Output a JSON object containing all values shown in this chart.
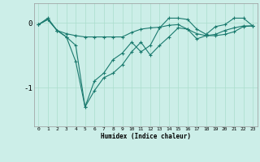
{
  "xlabel": "Humidex (Indice chaleur)",
  "bg_color": "#cceee8",
  "grid_color": "#aaddcc",
  "line_color": "#1a7a6e",
  "x_values": [
    0,
    1,
    2,
    3,
    4,
    5,
    6,
    7,
    8,
    9,
    10,
    11,
    12,
    13,
    14,
    15,
    16,
    17,
    18,
    19,
    20,
    21,
    22,
    23
  ],
  "series1": [
    -0.03,
    0.07,
    -0.12,
    -0.17,
    -0.2,
    -0.22,
    -0.22,
    -0.22,
    -0.22,
    -0.22,
    -0.15,
    -0.1,
    -0.08,
    -0.07,
    -0.04,
    -0.03,
    -0.1,
    -0.17,
    -0.2,
    -0.2,
    -0.18,
    -0.14,
    -0.06,
    -0.05
  ],
  "series2": [
    -0.03,
    0.05,
    -0.12,
    -0.22,
    -0.6,
    -1.3,
    -1.05,
    -0.85,
    -0.78,
    -0.65,
    -0.45,
    -0.3,
    -0.5,
    -0.35,
    -0.22,
    -0.08,
    -0.1,
    -0.25,
    -0.2,
    -0.18,
    -0.12,
    -0.08,
    -0.05,
    -0.05
  ],
  "series3": [
    -0.03,
    0.05,
    -0.12,
    -0.22,
    -0.35,
    -1.3,
    -0.9,
    -0.78,
    -0.57,
    -0.47,
    -0.3,
    -0.45,
    -0.35,
    -0.08,
    0.07,
    0.07,
    0.05,
    -0.1,
    -0.18,
    -0.06,
    -0.03,
    0.07,
    0.07,
    -0.05
  ],
  "ylim": [
    -1.6,
    0.3
  ],
  "yticks": [
    -1,
    0
  ],
  "xlim": [
    -0.5,
    23.5
  ]
}
